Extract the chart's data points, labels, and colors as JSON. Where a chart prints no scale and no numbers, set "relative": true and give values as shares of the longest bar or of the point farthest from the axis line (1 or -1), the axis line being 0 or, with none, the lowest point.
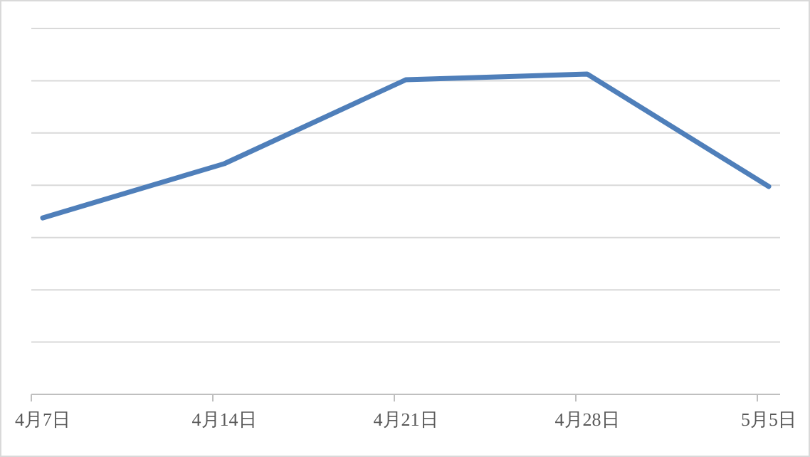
{
  "chart_data": {
    "type": "line",
    "relative": true,
    "categories": [
      "4月7日",
      "4月14日",
      "4月21日",
      "4月28日",
      "5月5日"
    ],
    "series": [
      {
        "color": "#4f7fba",
        "values": [
          0.551,
          0.72,
          0.982,
          1,
          0.649
        ]
      }
    ],
    "grid": "y",
    "marker": "none",
    "line_style": "solid"
  }
}
